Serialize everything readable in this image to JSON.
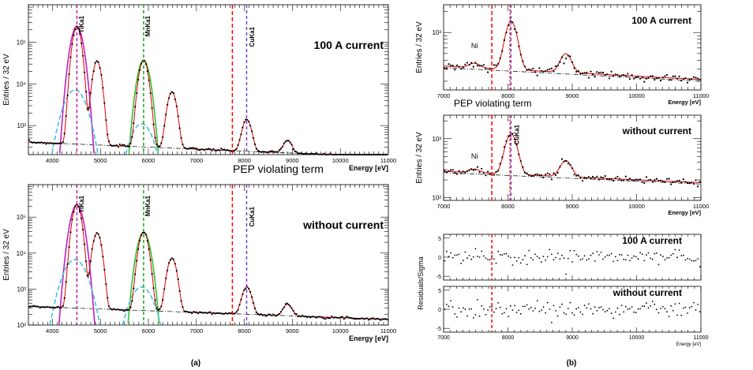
{
  "chart_data": [
    {
      "id": "a_top",
      "type": "scatter",
      "ylabel": "Entries / 32 eV",
      "xlabel": "Energy [eV]",
      "xlim": [
        3500,
        11000
      ],
      "ylim": [
        200,
        800000
      ],
      "yscale": "log",
      "x_tick_labels": [
        "4000",
        "5000",
        "6000",
        "7000",
        "8000",
        "9000",
        "10000",
        "11000"
      ],
      "y_tick_labels": [
        "10³",
        "10⁴",
        "10⁵"
      ],
      "annotation": "100 A current",
      "line_labels": [
        "TiKa1",
        "MnKa1",
        "CuKa1"
      ],
      "background_level": 400,
      "peaks": [
        {
          "center": 4510,
          "height": 240000,
          "sigma": 70
        },
        {
          "center": 4930,
          "height": 35000,
          "sigma": 70
        },
        {
          "center": 5900,
          "height": 37000,
          "sigma": 75
        },
        {
          "center": 6490,
          "height": 6200,
          "sigma": 75
        },
        {
          "center": 8050,
          "height": 1150,
          "sigma": 80
        },
        {
          "center": 8900,
          "height": 220,
          "sigma": 80
        }
      ]
    },
    {
      "id": "a_bottom",
      "type": "scatter",
      "ylabel": "Entries / 32 eV",
      "xlabel": "Energy [eV]",
      "xlim": [
        3500,
        11000
      ],
      "ylim": [
        100,
        800000
      ],
      "yscale": "log",
      "x_tick_labels": [
        "4000",
        "5000",
        "6000",
        "7000",
        "8000",
        "9000",
        "10000",
        "11000"
      ],
      "y_tick_labels": [
        "10²",
        "10³",
        "10⁴",
        "10⁵"
      ],
      "annotation": "without current",
      "line_labels": [
        "TiKa1",
        "MnKa1",
        "CuKa1"
      ],
      "background_level": 330,
      "peaks": [
        {
          "center": 4510,
          "height": 220000,
          "sigma": 70
        },
        {
          "center": 4930,
          "height": 36000,
          "sigma": 70
        },
        {
          "center": 5900,
          "height": 38000,
          "sigma": 75
        },
        {
          "center": 6490,
          "height": 7000,
          "sigma": 75
        },
        {
          "center": 8050,
          "height": 950,
          "sigma": 80
        },
        {
          "center": 8900,
          "height": 200,
          "sigma": 80
        }
      ]
    },
    {
      "id": "b_top",
      "type": "scatter",
      "ylabel": "Entries / 32 eV",
      "xlabel": "Energy [eV]",
      "xlim": [
        7000,
        11000
      ],
      "ylim": [
        150,
        2500
      ],
      "yscale": "log",
      "x_tick_labels": [
        "7000",
        "8000",
        "9000",
        "10000",
        "11000"
      ],
      "y_tick_labels": [
        "10³"
      ],
      "annotation": "100 A current",
      "line_labels": [
        "Ni"
      ],
      "background_level": 330,
      "peaks": [
        {
          "center": 7480,
          "height": 50,
          "sigma": 80
        },
        {
          "center": 8050,
          "height": 1150,
          "sigma": 80
        },
        {
          "center": 8900,
          "height": 230,
          "sigma": 80
        }
      ]
    },
    {
      "id": "b_mid",
      "type": "scatter",
      "ylabel": "Entries / 32 eV",
      "xlabel": "Energy [eV]",
      "xlim": [
        7000,
        11000
      ],
      "ylim": [
        90,
        2500
      ],
      "yscale": "log",
      "x_tick_labels": [
        "7000",
        "8000",
        "9000",
        "10000",
        "11000"
      ],
      "y_tick_labels": [
        "10²",
        "10³"
      ],
      "annotation": "without current",
      "line_labels": [
        "Ni",
        "CuKa1"
      ],
      "background_level": 280,
      "peaks": [
        {
          "center": 7480,
          "height": 40,
          "sigma": 80
        },
        {
          "center": 8050,
          "height": 950,
          "sigma": 80
        },
        {
          "center": 8900,
          "height": 200,
          "sigma": 80
        }
      ]
    },
    {
      "id": "b_res1",
      "type": "scatter",
      "ylabel": "Residuals/Sigma",
      "xlabel": "",
      "xlim": [
        7000,
        11000
      ],
      "ylim": [
        -6,
        6
      ],
      "yscale": "linear",
      "x_tick_labels": [],
      "y_tick_labels": [
        "5",
        "0",
        "-5"
      ],
      "annotation": "100 A current",
      "line_labels": []
    },
    {
      "id": "b_res2",
      "type": "scatter",
      "ylabel": "",
      "xlabel": "Energy [eV]",
      "xlim": [
        7000,
        11000
      ],
      "ylim": [
        -6,
        6
      ],
      "yscale": "linear",
      "x_tick_labels": [
        "7000",
        "8000",
        "9000",
        "10000",
        "11000"
      ],
      "y_tick_labels": [
        "5",
        "0",
        "-5"
      ],
      "annotation": "without current",
      "line_labels": []
    }
  ],
  "labels": {
    "pep_a": "PEP violating term",
    "pep_b": "PEP violating term",
    "caption_a": "(a)",
    "caption_b": "(b)"
  },
  "colors": {
    "fit": "#e00000",
    "data": "#000000",
    "pep_line": "#ff0000",
    "cu_line": "#7b3fb5",
    "ti_line": "#c020a0",
    "mn_line": "#20a020",
    "ti_tail": "#c020c0",
    "mn_tail": "#30c030",
    "cyan": "#40c0e0",
    "background": "#000000"
  }
}
